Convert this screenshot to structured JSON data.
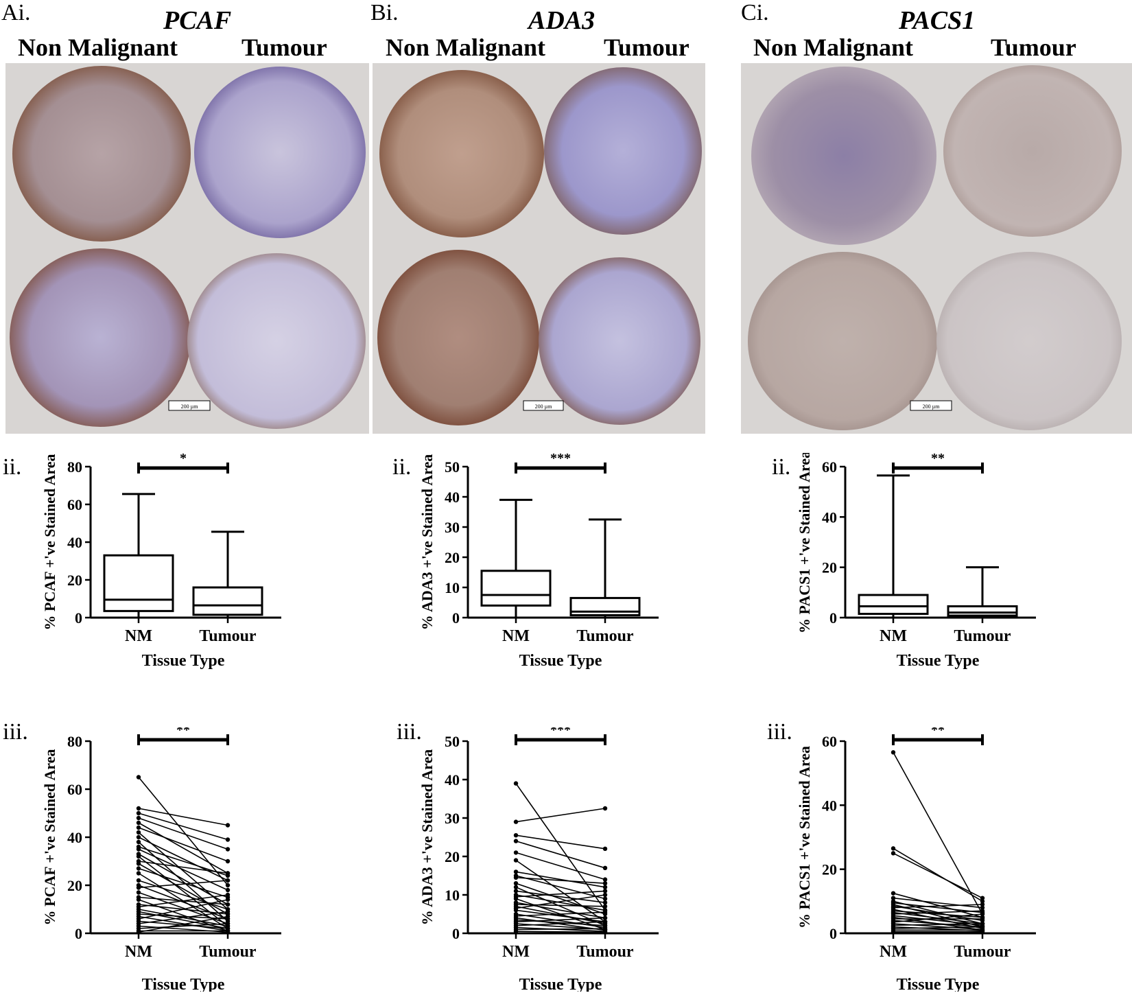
{
  "panels": [
    {
      "id": "A",
      "panel_label": "Ai.",
      "gene": "PCAF",
      "col_left": "Non Malignant",
      "col_right": "Tumour",
      "scale_bar": "200 µm",
      "sub_ii": "ii.",
      "sub_iii": "iii."
    },
    {
      "id": "B",
      "panel_label": "Bi.",
      "gene": "ADA3",
      "col_left": "Non Malignant",
      "col_right": "Tumour",
      "scale_bar": "200 µm",
      "sub_ii": "ii.",
      "sub_iii": "iii."
    },
    {
      "id": "C",
      "panel_label": "Ci.",
      "gene": "PACS1",
      "col_left": "Non Malignant",
      "col_right": "Tumour",
      "scale_bar": "200 µm",
      "sub_ii": "ii.",
      "sub_iii": "iii."
    }
  ],
  "colors": {
    "background": "#d8d5d3",
    "stain_brown": "#8a5a3c",
    "counterstain_blue": "#8c86c4",
    "tissue_light": "#c9c4d6"
  },
  "chart_data": [
    {
      "id": "A-ii",
      "type": "box",
      "ylabel": "% PCAF +'ve Stained Area",
      "xlabel": "Tissue Type",
      "categories": [
        "NM",
        "Tumour"
      ],
      "ylim": [
        0,
        80
      ],
      "yticks": [
        0,
        20,
        40,
        60,
        80
      ],
      "boxes": [
        {
          "min": 0,
          "q1": 3.5,
          "median": 9.5,
          "q3": 33,
          "max": 65.5
        },
        {
          "min": 0,
          "q1": 1.5,
          "median": 6.5,
          "q3": 16,
          "max": 45.5
        }
      ],
      "significance": "*"
    },
    {
      "id": "B-ii",
      "type": "box",
      "ylabel": "% ADA3 +'ve Stained Area",
      "xlabel": "Tissue Type",
      "categories": [
        "NM",
        "Tumour"
      ],
      "ylim": [
        0,
        50
      ],
      "yticks": [
        0,
        10,
        20,
        30,
        40,
        50
      ],
      "boxes": [
        {
          "min": 0,
          "q1": 4,
          "median": 7.5,
          "q3": 15.5,
          "max": 39
        },
        {
          "min": 0,
          "q1": 0.8,
          "median": 2,
          "q3": 6.5,
          "max": 32.5
        }
      ],
      "significance": "***"
    },
    {
      "id": "C-ii",
      "type": "box",
      "ylabel": "% PACS1 +'ve Stained Area",
      "xlabel": "Tissue Type",
      "categories": [
        "NM",
        "Tumour"
      ],
      "ylim": [
        0,
        60
      ],
      "yticks": [
        0,
        20,
        40,
        60
      ],
      "boxes": [
        {
          "min": 0,
          "q1": 1.5,
          "median": 4.5,
          "q3": 9,
          "max": 56.5
        },
        {
          "min": 0,
          "q1": 0.8,
          "median": 2,
          "q3": 4.5,
          "max": 20
        }
      ],
      "significance": "**"
    },
    {
      "id": "A-iii",
      "type": "paired",
      "ylabel": "% PCAF +'ve Stained Area",
      "xlabel": "Tissue Type",
      "categories": [
        "NM",
        "Tumour"
      ],
      "ylim": [
        0,
        80
      ],
      "yticks": [
        0,
        20,
        40,
        60,
        80
      ],
      "pairs": [
        [
          65,
          20
        ],
        [
          52,
          45
        ],
        [
          50,
          39
        ],
        [
          48,
          35
        ],
        [
          46,
          25
        ],
        [
          44,
          30
        ],
        [
          42,
          10
        ],
        [
          40,
          22
        ],
        [
          38,
          5
        ],
        [
          36,
          24
        ],
        [
          35,
          18
        ],
        [
          33,
          12
        ],
        [
          32,
          3
        ],
        [
          30,
          25
        ],
        [
          29,
          8
        ],
        [
          27,
          15
        ],
        [
          25,
          2
        ],
        [
          22,
          10
        ],
        [
          20,
          6
        ],
        [
          19,
          22
        ],
        [
          17,
          4
        ],
        [
          15,
          12
        ],
        [
          14,
          1
        ],
        [
          12,
          8
        ],
        [
          11,
          16
        ],
        [
          10,
          3
        ],
        [
          9,
          2
        ],
        [
          8,
          6
        ],
        [
          7,
          1
        ],
        [
          6,
          14
        ],
        [
          5,
          2
        ],
        [
          4,
          9
        ],
        [
          3,
          0.5
        ],
        [
          2,
          4
        ],
        [
          1,
          1
        ],
        [
          0.5,
          7
        ]
      ],
      "significance": "**"
    },
    {
      "id": "B-iii",
      "type": "paired",
      "ylabel": "% ADA3 +'ve Stained Area",
      "xlabel": "Tissue Type",
      "categories": [
        "NM",
        "Tumour"
      ],
      "ylim": [
        0,
        50
      ],
      "yticks": [
        0,
        10,
        20,
        30,
        40,
        50
      ],
      "pairs": [
        [
          39,
          6
        ],
        [
          29,
          32.5
        ],
        [
          25.5,
          22
        ],
        [
          24,
          17
        ],
        [
          21,
          14
        ],
        [
          19,
          3
        ],
        [
          16,
          12
        ],
        [
          15,
          9
        ],
        [
          14.5,
          13
        ],
        [
          13,
          5
        ],
        [
          12,
          2
        ],
        [
          11,
          8
        ],
        [
          10,
          6
        ],
        [
          9.5,
          11
        ],
        [
          9,
          1
        ],
        [
          8,
          4
        ],
        [
          7.5,
          7
        ],
        [
          7,
          2.5
        ],
        [
          6.5,
          10
        ],
        [
          6,
          3
        ],
        [
          5,
          1.5
        ],
        [
          4.5,
          5.5
        ],
        [
          4,
          0.8
        ],
        [
          3.5,
          2
        ],
        [
          3,
          4
        ],
        [
          2.5,
          1
        ],
        [
          2,
          3
        ],
        [
          1.5,
          0.5
        ],
        [
          1,
          1.2
        ],
        [
          0.5,
          0.3
        ]
      ],
      "significance": "***"
    },
    {
      "id": "C-iii",
      "type": "paired",
      "ylabel": "% PACS1 +'ve Stained Area",
      "xlabel": "Tissue Type",
      "categories": [
        "NM",
        "Tumour"
      ],
      "ylim": [
        0,
        60
      ],
      "yticks": [
        0,
        20,
        40,
        60
      ],
      "pairs": [
        [
          56.5,
          6
        ],
        [
          26.5,
          10
        ],
        [
          25,
          11
        ],
        [
          12.5,
          5
        ],
        [
          11,
          8
        ],
        [
          10,
          3
        ],
        [
          9.5,
          6.5
        ],
        [
          9,
          2
        ],
        [
          8.5,
          4
        ],
        [
          8,
          9
        ],
        [
          7.5,
          1.5
        ],
        [
          7,
          5
        ],
        [
          6.5,
          3
        ],
        [
          6,
          7
        ],
        [
          5.5,
          2.5
        ],
        [
          5,
          1
        ],
        [
          4.5,
          4.5
        ],
        [
          4,
          2
        ],
        [
          3.5,
          6
        ],
        [
          3,
          1.2
        ],
        [
          2.5,
          3
        ],
        [
          2,
          0.8
        ],
        [
          1.5,
          2
        ],
        [
          1,
          1
        ],
        [
          0.5,
          0.5
        ]
      ],
      "significance": "**"
    }
  ]
}
